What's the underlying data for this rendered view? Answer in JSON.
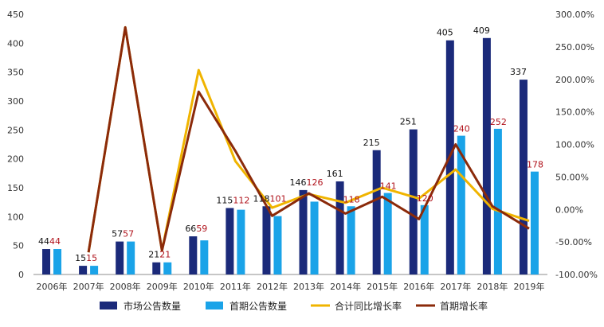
{
  "chart_data": {
    "type": "bar",
    "categories": [
      "2006年",
      "2007年",
      "2008年",
      "2009年",
      "2010年",
      "2011年",
      "2012年",
      "2013年",
      "2014年",
      "2015年",
      "2016年",
      "2017年",
      "2018年",
      "2019年"
    ],
    "series": [
      {
        "name": "市场公告数量",
        "kind": "bar",
        "axis": "left",
        "color": "#1b2a7a",
        "values": [
          44,
          15,
          57,
          21,
          66,
          115,
          118,
          146,
          161,
          215,
          251,
          405,
          409,
          337
        ],
        "labels": [
          "44",
          "15",
          "57",
          "21",
          "66",
          "115",
          "118",
          "146",
          "161",
          "215",
          "251",
          "405",
          "409",
          "337"
        ]
      },
      {
        "name": "首期公告数量",
        "kind": "bar",
        "axis": "left",
        "color": "#1aa3e8",
        "values": [
          44,
          15,
          57,
          21,
          59,
          112,
          101,
          126,
          118,
          141,
          120,
          240,
          252,
          178
        ],
        "labels": [
          "44",
          "15",
          "57",
          "21",
          "59",
          "112",
          "101",
          "126",
          "118",
          "141",
          "120",
          "240",
          "252",
          "178"
        ]
      },
      {
        "name": "合计同比增长率",
        "kind": "line",
        "axis": "right",
        "color": "#f0b400",
        "values": [
          null,
          -65.9,
          280.0,
          -63.2,
          214.3,
          74.2,
          2.6,
          23.7,
          10.3,
          33.5,
          16.7,
          61.4,
          1.0,
          -17.6
        ]
      },
      {
        "name": "首期增长率",
        "kind": "line",
        "axis": "right",
        "color": "#8b2a0a",
        "values": [
          null,
          -65.9,
          280.0,
          -63.2,
          181.0,
          89.8,
          -9.8,
          24.8,
          -6.3,
          19.5,
          -14.9,
          100.0,
          5.0,
          -29.4
        ]
      }
    ],
    "left_axis": {
      "min": 0,
      "max": 450,
      "ticks": [
        0,
        50,
        100,
        150,
        200,
        250,
        300,
        350,
        400,
        450
      ],
      "tick_labels": [
        "0",
        "50",
        "100",
        "150",
        "200",
        "250",
        "300",
        "350",
        "400",
        "450"
      ]
    },
    "right_axis": {
      "min": -100,
      "max": 300,
      "ticks": [
        -100,
        -50,
        0,
        50,
        100,
        150,
        200,
        250,
        300
      ],
      "tick_labels": [
        "-100.00%",
        "-50.00%",
        "0.00%",
        "50.00%",
        "100.00%",
        "150.00%",
        "200.00%",
        "250.00%",
        "300.00%"
      ]
    },
    "grid": false,
    "legend_position": "bottom",
    "data_label_colors": {
      "市场公告数量": "#111111",
      "首期公告数量": "#b0121b"
    }
  }
}
